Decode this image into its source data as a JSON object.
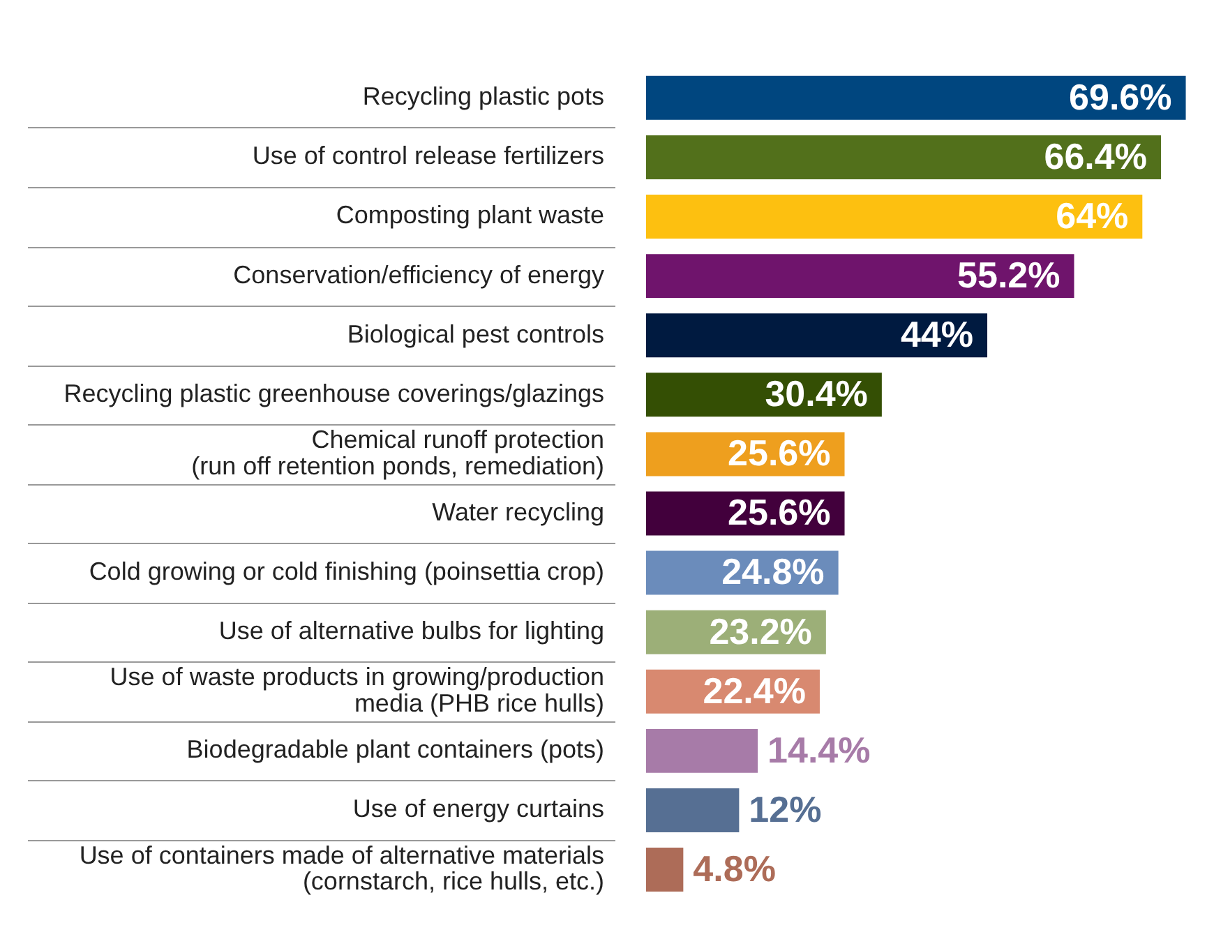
{
  "chart_data": {
    "type": "bar",
    "orientation": "horizontal",
    "tick_labels": "y",
    "grid": "y",
    "legend": false,
    "categories": [
      "Recycling plastic pots",
      "Use of control release fertilizers",
      "Composting plant waste",
      "Conservation/efficiency of energy",
      "Biological pest controls",
      "Recycling plastic greenhouse coverings/glazings",
      "Chemical runoff protection\n(run off retention ponds, remediation)",
      "Water recycling",
      "Cold growing or cold finishing (poinsettia crop)",
      "Use of alternative bulbs for lighting",
      "Use of waste products in growing/production\nmedia (PHB rice hulls)",
      "Biodegradable plant containers (pots)",
      "Use of energy curtains",
      "Use of containers made of alternative materials\n(cornstarch, rice hulls, etc.)"
    ],
    "values": [
      69.6,
      66.4,
      64,
      55.2,
      44,
      30.4,
      25.6,
      25.6,
      24.8,
      23.2,
      22.4,
      14.4,
      12,
      4.8
    ],
    "colors": [
      "#00467f",
      "#52701b",
      "#fdc010",
      "#6f146c",
      "#001a40",
      "#344f04",
      "#ee9f1e",
      "#42003c",
      "#6b8cbb",
      "#9caf78",
      "#d88970",
      "#a77ba8",
      "#566f93",
      "#ad6c58"
    ],
    "value_labels": [
      "69.6%",
      "66.4%",
      "64%",
      "55.2%",
      "44%",
      "30.4%",
      "25.6%",
      "25.6%",
      "24.8%",
      "23.2%",
      "22.4%",
      "14.4%",
      "12%",
      "4.8%"
    ]
  }
}
